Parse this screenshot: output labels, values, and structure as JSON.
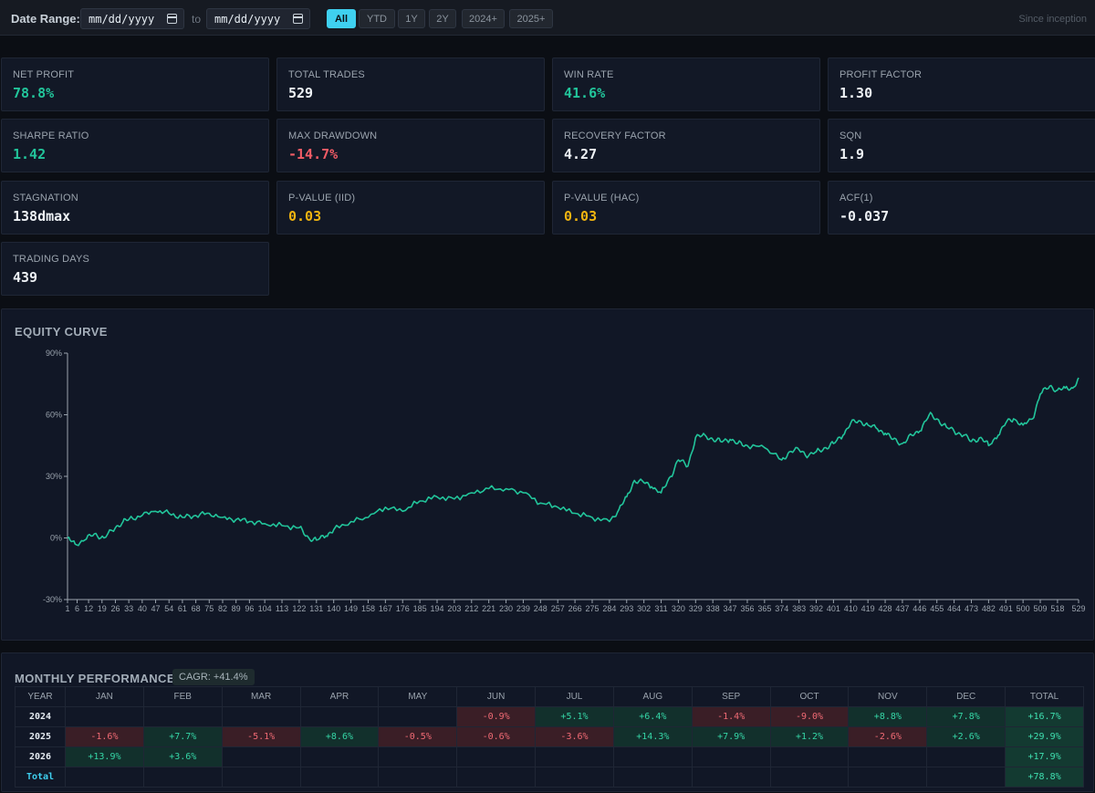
{
  "toolbar": {
    "date_range_label": "Date Range:",
    "from_placeholder": "mm/dd/yyyy",
    "to_label": "to",
    "to_placeholder": "mm/dd/yyyy",
    "ranges": [
      "All",
      "YTD",
      "1Y",
      "2Y",
      "2024+",
      "2025+"
    ],
    "active_range": "All",
    "since_label": "Since inception"
  },
  "metrics": [
    {
      "label": "NET PROFIT",
      "value": "78.8%",
      "color": "green"
    },
    {
      "label": "TOTAL TRADES",
      "value": "529",
      "color": "white"
    },
    {
      "label": "WIN RATE",
      "value": "41.6%",
      "color": "green"
    },
    {
      "label": "PROFIT FACTOR",
      "value": "1.30",
      "color": "white"
    },
    {
      "label": "SHARPE RATIO",
      "value": "1.42",
      "color": "green"
    },
    {
      "label": "MAX DRAWDOWN",
      "value": "-14.7%",
      "color": "red"
    },
    {
      "label": "RECOVERY FACTOR",
      "value": "4.27",
      "color": "white"
    },
    {
      "label": "SQN",
      "value": "1.9",
      "color": "white"
    },
    {
      "label": "STAGNATION",
      "value": "138dmax",
      "color": "white"
    },
    {
      "label": "P-VALUE (IID)",
      "value": "0.03",
      "color": "yellow"
    },
    {
      "label": "P-VALUE (HAC)",
      "value": "0.03",
      "color": "yellow"
    },
    {
      "label": "ACF(1)",
      "value": "-0.037",
      "color": "white"
    },
    {
      "label": "TRADING DAYS",
      "value": "439",
      "color": "white"
    }
  ],
  "equity": {
    "title": "EQUITY CURVE",
    "line_color": "#22c59b"
  },
  "chart_data": {
    "type": "line",
    "title": "EQUITY CURVE",
    "xlabel": "",
    "ylabel": "",
    "xlim": [
      1,
      529
    ],
    "ylim": [
      -30,
      90
    ],
    "y_ticks": [
      "90%",
      "60%",
      "30%",
      "0%",
      "-30%"
    ],
    "y_tick_values": [
      90,
      60,
      30,
      0,
      -30
    ],
    "x_ticks": [
      1,
      6,
      12,
      19,
      26,
      33,
      40,
      47,
      54,
      61,
      68,
      75,
      82,
      89,
      96,
      104,
      113,
      122,
      131,
      140,
      149,
      158,
      167,
      176,
      185,
      194,
      203,
      212,
      221,
      230,
      239,
      248,
      257,
      266,
      275,
      284,
      293,
      302,
      311,
      320,
      329,
      338,
      347,
      356,
      365,
      374,
      383,
      392,
      401,
      410,
      419,
      428,
      437,
      446,
      455,
      464,
      473,
      482,
      491,
      500,
      509,
      518,
      529
    ],
    "grid": false,
    "series": [
      {
        "x": [
          1,
          5,
          10,
          15,
          20,
          26,
          30,
          33,
          40,
          47,
          54,
          61,
          68,
          75,
          82,
          89,
          96,
          104,
          113,
          122,
          127,
          131,
          136,
          140,
          149,
          158,
          167,
          176,
          185,
          194,
          203,
          212,
          221,
          230,
          239,
          248,
          257,
          266,
          275,
          284,
          289,
          293,
          297,
          302,
          306,
          311,
          316,
          320,
          325,
          329,
          334,
          338,
          342,
          347,
          351,
          356,
          365,
          374,
          378,
          383,
          388,
          392,
          397,
          401,
          406,
          410,
          415,
          419,
          424,
          428,
          432,
          437,
          442,
          446,
          451,
          455,
          460,
          464,
          469,
          473,
          478,
          482,
          487,
          491,
          495,
          500,
          505,
          509,
          514,
          518,
          522,
          526,
          529
        ],
        "y": [
          0,
          -3,
          -1,
          2,
          0,
          5,
          8,
          9,
          11,
          13,
          12,
          10,
          11,
          12,
          10,
          9,
          8,
          7,
          6,
          5,
          0,
          -1,
          1,
          4,
          8,
          10,
          15,
          13,
          18,
          20,
          19,
          22,
          24,
          24,
          22,
          17,
          15,
          12,
          10,
          8,
          14,
          20,
          28,
          27,
          25,
          22,
          30,
          38,
          35,
          49,
          50,
          48,
          47,
          48,
          46,
          45,
          44,
          38,
          42,
          43,
          40,
          42,
          44,
          46,
          50,
          56,
          57,
          55,
          53,
          51,
          48,
          46,
          50,
          52,
          60,
          58,
          54,
          52,
          50,
          47,
          49,
          45,
          50,
          56,
          58,
          55,
          58,
          70,
          74,
          72,
          73,
          73,
          78
        ]
      }
    ]
  },
  "monthly": {
    "title": "MONTHLY PERFORMANCE",
    "cagr": "CAGR: +41.4%",
    "headers": [
      "YEAR",
      "JAN",
      "FEB",
      "MAR",
      "APR",
      "MAY",
      "JUN",
      "JUL",
      "AUG",
      "SEP",
      "OCT",
      "NOV",
      "DEC",
      "TOTAL"
    ],
    "rows": [
      {
        "year": "2024",
        "cells": [
          "",
          "",
          "",
          "",
          "",
          "-0.9%",
          "+5.1%",
          "+6.4%",
          "-1.4%",
          "-9.0%",
          "+8.8%",
          "+7.8%"
        ],
        "total": "+16.7%"
      },
      {
        "year": "2025",
        "cells": [
          "-1.6%",
          "+7.7%",
          "-5.1%",
          "+8.6%",
          "-0.5%",
          "-0.6%",
          "-3.6%",
          "+14.3%",
          "+7.9%",
          "+1.2%",
          "-2.6%",
          "+2.6%"
        ],
        "total": "+29.9%"
      },
      {
        "year": "2026",
        "cells": [
          "+13.9%",
          "+3.6%",
          "",
          "",
          "",
          "",
          "",
          "",
          "",
          "",
          "",
          ""
        ],
        "total": "+17.9%"
      }
    ],
    "total_label": "Total",
    "grand_total": "+78.8%"
  }
}
